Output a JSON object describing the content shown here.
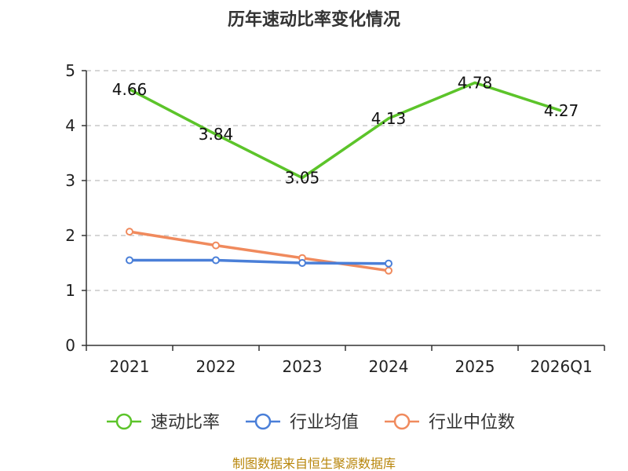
{
  "chart_data": {
    "type": "line",
    "title": "历年速动比率变化情况",
    "categories": [
      "2021",
      "2022",
      "2023",
      "2024",
      "2025",
      "2026Q1"
    ],
    "ylim": [
      0,
      5
    ],
    "yticks": [
      "0",
      "1",
      "2",
      "3",
      "4",
      "5"
    ],
    "grid": true,
    "legend_position": "bottom",
    "series": [
      {
        "name": "速动比率",
        "color": "#5cc42a",
        "markers": false,
        "show_labels": true,
        "values": [
          4.66,
          3.84,
          3.05,
          4.13,
          4.78,
          4.27
        ],
        "labels": [
          "4.66",
          "3.84",
          "3.05",
          "4.13",
          "4.78",
          "4.27"
        ]
      },
      {
        "name": "行业均值",
        "color": "#4a7fd8",
        "markers": true,
        "show_labels": false,
        "values": [
          1.55,
          1.55,
          1.5,
          1.49,
          null,
          null
        ]
      },
      {
        "name": "行业中位数",
        "color": "#f08a5d",
        "markers": true,
        "show_labels": false,
        "values": [
          2.07,
          1.82,
          1.59,
          1.36,
          null,
          null
        ]
      }
    ]
  },
  "source": "制图数据来自恒生聚源数据库"
}
